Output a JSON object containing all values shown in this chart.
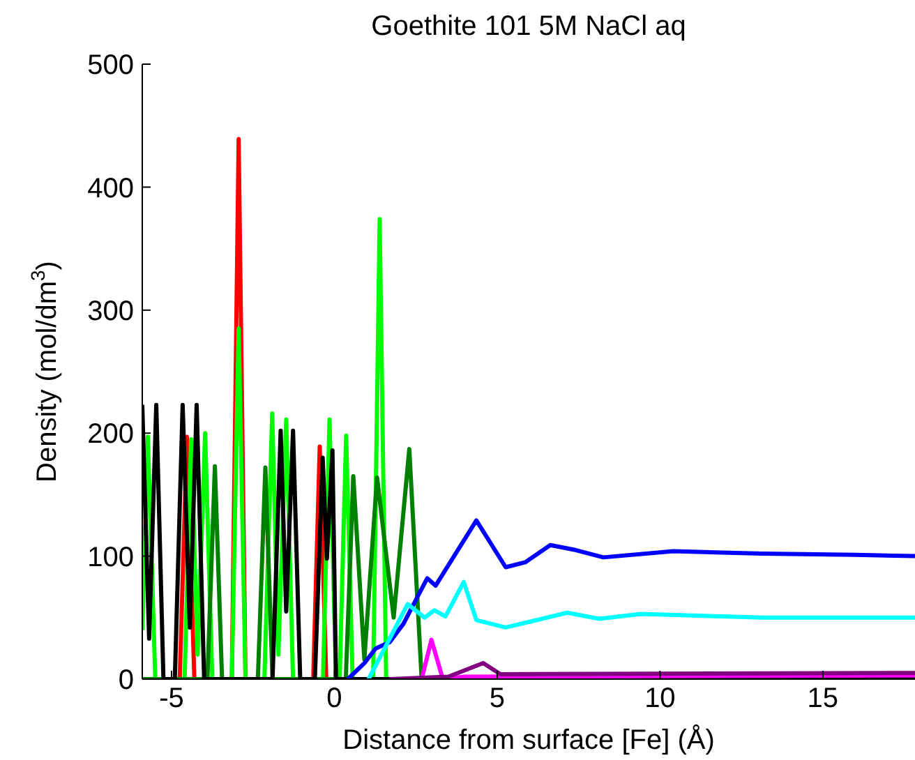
{
  "chart_data": {
    "type": "line",
    "title": "Goethite 101 5M NaCl aq",
    "xlabel": "Distance from surface [Fe] (Å)",
    "ylabel": "Density (mol/dm$^{3}$)",
    "xlim": [
      -5.9,
      17.83
    ],
    "ylim": [
      0,
      500
    ],
    "xticks": [
      -5,
      0,
      5,
      10,
      15
    ],
    "yticks": [
      0,
      100,
      200,
      300,
      400,
      500
    ],
    "grid": false,
    "legend": false,
    "marker": "none",
    "line_style": "solid",
    "series": [
      {
        "color": "#ff0000",
        "x": [
          -5.5,
          -4.75,
          -4.53,
          -4.3,
          -3.15,
          -2.94,
          -2.73,
          -0.65,
          -0.45,
          -0.25,
          0.1,
          17.83
        ],
        "values": [
          0,
          0,
          197,
          0,
          0,
          439,
          0,
          0,
          189,
          0,
          0,
          0
        ]
      },
      {
        "color": "#00ff00",
        "x": [
          -5.9,
          -5.73,
          -5.5,
          -4.6,
          -4.4,
          -4.2,
          -3.97,
          -3.75,
          -3.15,
          -2.94,
          -2.73,
          -2.15,
          -1.91,
          -1.72,
          -1.48,
          -1.27,
          -0.35,
          -0.15,
          0.05,
          0.16,
          0.36,
          0.56,
          1.19,
          1.39,
          1.59,
          17.83
        ],
        "values": [
          40,
          197,
          0,
          0,
          195,
          20,
          200,
          0,
          0,
          285,
          0,
          0,
          216,
          20,
          211,
          0,
          0,
          211,
          0,
          0,
          198,
          0,
          0,
          374,
          0,
          0
        ]
      },
      {
        "color": "#008000",
        "x": [
          -5.9,
          -3.9,
          -3.67,
          -3.45,
          -2.35,
          -2.12,
          -1.9,
          0.35,
          0.58,
          0.92,
          1.31,
          1.82,
          2.3,
          2.68,
          17.83
        ],
        "values": [
          0,
          0,
          173,
          0,
          0,
          172,
          0,
          0,
          165,
          16,
          164,
          50,
          187,
          0,
          0
        ]
      },
      {
        "color": "#000000",
        "x": [
          -5.9,
          -5.69,
          -5.47,
          -5.25,
          -4.9,
          -4.66,
          -4.44,
          -4.23,
          -4.0,
          -1.9,
          -1.65,
          -1.48,
          -1.27,
          -1.05,
          -0.6,
          -0.36,
          -0.23,
          -0.06,
          0.05,
          17.83
        ],
        "values": [
          223,
          33,
          223,
          0,
          0,
          223,
          42,
          223,
          0,
          0,
          202,
          55,
          202,
          0,
          0,
          180,
          98,
          186,
          0,
          0
        ]
      },
      {
        "color": "#0000ff",
        "x": [
          0.41,
          0.92,
          1.27,
          1.7,
          2.12,
          2.85,
          3.11,
          4.36,
          5.26,
          5.86,
          6.63,
          7.4,
          8.26,
          10.41,
          13.15,
          15.99,
          17.83
        ],
        "values": [
          0,
          13,
          25,
          30,
          45,
          82,
          76,
          129,
          91,
          95,
          109,
          105,
          99,
          104,
          102,
          101,
          100
        ]
      },
      {
        "color": "#00ffff",
        "x": [
          1.05,
          2.25,
          2.77,
          3.07,
          3.41,
          3.97,
          4.36,
          5.26,
          7.15,
          8.13,
          9.42,
          13.15,
          17.83
        ],
        "values": [
          0,
          61,
          50,
          56,
          51,
          79,
          48,
          42,
          54,
          49,
          53,
          50,
          50
        ]
      },
      {
        "color": "#ff00ff",
        "x": [
          1.8,
          2.68,
          2.98,
          3.33,
          4.0,
          17.83
        ],
        "values": [
          0,
          0,
          32,
          0,
          2,
          3
        ]
      },
      {
        "color": "#800080",
        "x": [
          1.7,
          3.5,
          4.57,
          5.1,
          17.83
        ],
        "values": [
          0,
          2,
          13,
          4,
          5
        ]
      }
    ]
  }
}
